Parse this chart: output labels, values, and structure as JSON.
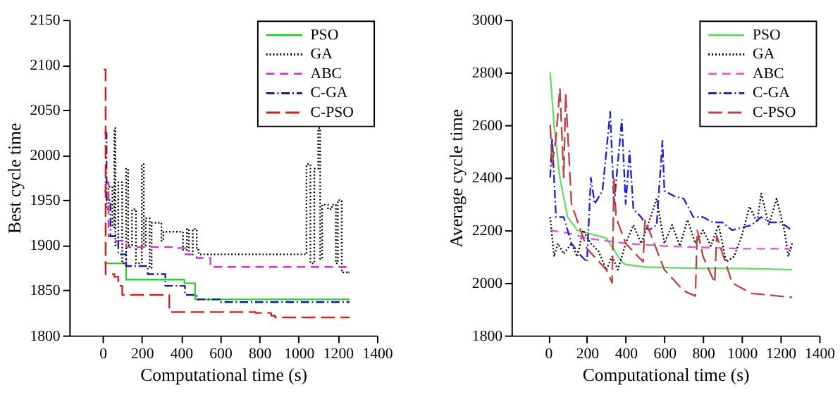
{
  "chart_data": [
    {
      "type": "step",
      "xlabel": "Computational time (s)",
      "ylabel": "Best cycle time",
      "xlim": [
        -170,
        1400
      ],
      "xticks": [
        0,
        200,
        400,
        600,
        800,
        1000,
        1200,
        1400
      ],
      "ylim": [
        1800,
        2150
      ],
      "yticks": [
        1800,
        1850,
        1900,
        1950,
        2000,
        2050,
        2100,
        2150
      ],
      "legend": "top right",
      "grid": false,
      "series": [
        {
          "name": "PSO",
          "color": "#33cc33",
          "line_style": "solid",
          "x": [
            10,
            120,
            417,
            472,
            1260
          ],
          "values": [
            1880,
            1862,
            1858,
            1840,
            1840
          ]
        },
        {
          "name": "GA",
          "color": "#000000",
          "line_style": "dotted",
          "x": [
            10,
            20,
            30,
            50,
            60,
            65,
            80,
            100,
            120,
            130,
            150,
            170,
            200,
            210,
            220,
            240,
            250,
            300,
            310,
            400,
            410,
            430,
            440,
            460,
            480,
            490,
            1030,
            1040,
            1060,
            1080,
            1100,
            1110,
            1120,
            1150,
            1170,
            1190,
            1200,
            1220,
            1260
          ],
          "values": [
            1960,
            1940,
            1965,
            1920,
            2030,
            1900,
            1970,
            1880,
            1985,
            1900,
            1940,
            1880,
            1990,
            1900,
            1930,
            1875,
            1925,
            1905,
            1915,
            1915,
            1895,
            1918,
            1890,
            1918,
            1895,
            1890,
            1890,
            1990,
            1880,
            1985,
            2030,
            1885,
            1945,
            1940,
            1945,
            1880,
            1950,
            1870,
            1870
          ]
        },
        {
          "name": "ABC",
          "color": "#cc33cc",
          "line_style": "dashed",
          "x": [
            10,
            30,
            60,
            120,
            370,
            420,
            480,
            550,
            1240,
            1260
          ],
          "values": [
            1970,
            1910,
            1905,
            1898,
            1897,
            1890,
            1886,
            1876,
            1870,
            1870
          ]
        },
        {
          "name": "C-GA",
          "color": "#1a1a99",
          "line_style": "dashdot",
          "x": [
            10,
            20,
            40,
            80,
            120,
            230,
            320,
            420,
            480,
            600,
            1260
          ],
          "values": [
            2025,
            1950,
            1910,
            1890,
            1877,
            1868,
            1855,
            1845,
            1840,
            1837,
            1837
          ]
        },
        {
          "name": "C-PSO",
          "color": "#cc2222",
          "line_style": "longdash",
          "x": [
            5,
            15,
            60,
            80,
            100,
            340,
            780,
            860,
            880,
            1260
          ],
          "values": [
            2095,
            1868,
            1865,
            1855,
            1845,
            1826,
            1825,
            1822,
            1820,
            1820
          ]
        }
      ]
    },
    {
      "type": "line",
      "xlabel": "Computational time (s)",
      "ylabel": "Average cycle time",
      "xlim": [
        -190,
        1400
      ],
      "xticks": [
        0,
        200,
        400,
        600,
        800,
        1000,
        1200,
        1400
      ],
      "ylim": [
        1800,
        3000
      ],
      "yticks": [
        1800,
        2000,
        2200,
        2400,
        2600,
        2800,
        3000
      ],
      "legend": "top right",
      "grid": false,
      "series": [
        {
          "name": "PSO",
          "color": "#66dd66",
          "line_style": "solid",
          "x": [
            10,
            30,
            60,
            100,
            150,
            200,
            300,
            380,
            400,
            500,
            800,
            1000,
            1260
          ],
          "values": [
            2800,
            2600,
            2400,
            2250,
            2200,
            2190,
            2170,
            2080,
            2070,
            2060,
            2055,
            2055,
            2050
          ]
        },
        {
          "name": "GA",
          "color": "#000000",
          "line_style": "dotted",
          "x": [
            10,
            30,
            50,
            80,
            120,
            150,
            180,
            220,
            260,
            300,
            330,
            360,
            400,
            440,
            480,
            520,
            560,
            600,
            640,
            680,
            720,
            760,
            800,
            840,
            880,
            920,
            960,
            1000,
            1040,
            1080,
            1100,
            1140,
            1180,
            1220,
            1240,
            1260
          ],
          "values": [
            2250,
            2100,
            2150,
            2110,
            2150,
            2100,
            2200,
            2150,
            2120,
            2050,
            2100,
            2050,
            2150,
            2220,
            2150,
            2230,
            2320,
            2150,
            2220,
            2140,
            2240,
            2150,
            2200,
            2140,
            2220,
            2080,
            2100,
            2180,
            2290,
            2230,
            2340,
            2220,
            2320,
            2200,
            2100,
            2150
          ]
        },
        {
          "name": "ABC",
          "color": "#dd55dd",
          "line_style": "dashed",
          "x": [
            10,
            100,
            200,
            400,
            600,
            800,
            1000,
            1260
          ],
          "values": [
            2200,
            2190,
            2170,
            2150,
            2140,
            2135,
            2130,
            2130
          ]
        },
        {
          "name": "C-GA",
          "color": "#2222cc",
          "line_style": "dashdot",
          "x": [
            10,
            20,
            40,
            80,
            120,
            160,
            200,
            220,
            240,
            280,
            320,
            340,
            380,
            400,
            420,
            440,
            480,
            520,
            560,
            590,
            600,
            650,
            700,
            750,
            800,
            850,
            900,
            950,
            1000,
            1050,
            1100,
            1150,
            1200,
            1260
          ],
          "values": [
            2400,
            2550,
            2250,
            2250,
            2150,
            2110,
            2080,
            2400,
            2300,
            2350,
            2650,
            2300,
            2620,
            2300,
            2500,
            2280,
            2250,
            2200,
            2220,
            2540,
            2350,
            2330,
            2320,
            2250,
            2250,
            2230,
            2230,
            2200,
            2210,
            2220,
            2250,
            2230,
            2230,
            2200
          ]
        },
        {
          "name": "C-PSO",
          "color": "#bb4444",
          "line_style": "longdash",
          "x": [
            10,
            20,
            40,
            60,
            80,
            90,
            120,
            200,
            300,
            330,
            340,
            350,
            400,
            490,
            500,
            600,
            700,
            760,
            770,
            800,
            860,
            870,
            950,
            1050,
            1260
          ],
          "values": [
            2600,
            2450,
            2550,
            2740,
            2400,
            2720,
            2300,
            2130,
            2050,
            2000,
            2400,
            2250,
            2150,
            2080,
            2240,
            2050,
            1970,
            1950,
            2200,
            2100,
            2000,
            2180,
            2000,
            1960,
            1945
          ]
        }
      ]
    }
  ]
}
